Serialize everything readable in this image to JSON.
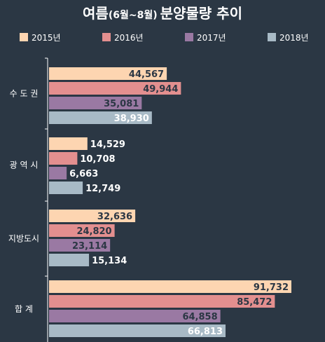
{
  "title": {
    "main": "여름",
    "sub": "(6월~8월)",
    "rest": "분양물량 추이"
  },
  "chart_data": {
    "type": "bar",
    "orientation": "horizontal",
    "categories": [
      "수 도 권",
      "광 역 시",
      "지방도시",
      "합    계"
    ],
    "series": [
      {
        "name": "2015년",
        "color": "#fdd5b1",
        "values": [
          44567,
          14529,
          32636,
          91732
        ],
        "labels": [
          "44,567",
          "14,529",
          "32,636",
          "91,732"
        ]
      },
      {
        "name": "2016년",
        "color": "#e38f8f",
        "values": [
          49944,
          10708,
          24820,
          85472
        ],
        "labels": [
          "49,944",
          "10,708",
          "24,820",
          "85,472"
        ]
      },
      {
        "name": "2017년",
        "color": "#9a79a3",
        "values": [
          35081,
          6663,
          23114,
          64858
        ],
        "labels": [
          "35,081",
          "6,663",
          "23,114",
          "64,858"
        ]
      },
      {
        "name": "2018년",
        "color": "#a8bac6",
        "values": [
          38930,
          12749,
          15134,
          66813
        ],
        "labels": [
          "38,930",
          "12,749",
          "15,134",
          "66,813"
        ]
      }
    ],
    "legend_position": "top",
    "grid": false,
    "xlim": [
      0,
      100000
    ]
  },
  "colors": {
    "background": "#2b3744",
    "axis": "#ffffff",
    "title": "#ffffff",
    "label_dark": "#2b3744",
    "label_light": "#ffffff"
  }
}
